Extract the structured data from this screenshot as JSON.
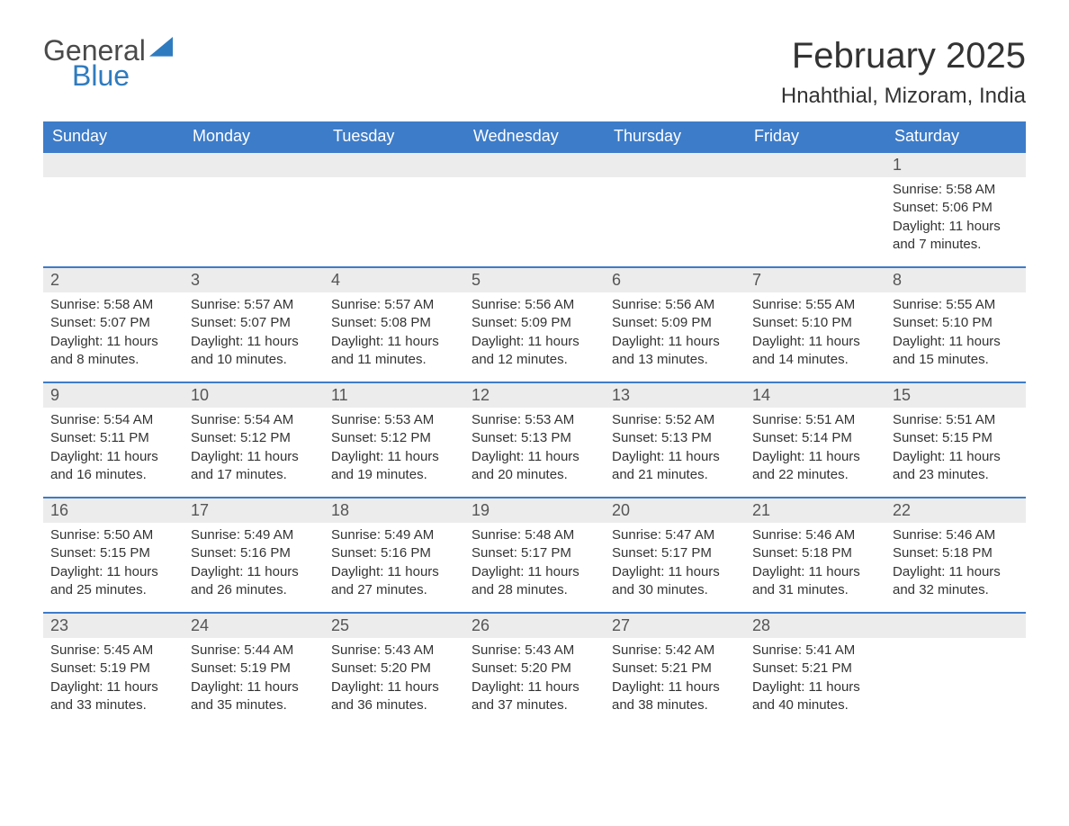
{
  "brand": {
    "word1": "General",
    "word2": "Blue",
    "accent": "#2f7bbf",
    "text_color": "#4a4a4a"
  },
  "header": {
    "title": "February 2025",
    "location": "Hnahthial, Mizoram, India"
  },
  "theme": {
    "header_bg": "#3d7cc9",
    "header_fg": "#ffffff",
    "daynum_bg": "#ececec",
    "rule_color": "#3d7cc9",
    "body_fg": "#333333",
    "page_bg": "#ffffff"
  },
  "weekdays": [
    "Sunday",
    "Monday",
    "Tuesday",
    "Wednesday",
    "Thursday",
    "Friday",
    "Saturday"
  ],
  "first_weekday_index": 6,
  "days": [
    {
      "n": 1,
      "sunrise": "5:58 AM",
      "sunset": "5:06 PM",
      "daylight": "11 hours and 7 minutes."
    },
    {
      "n": 2,
      "sunrise": "5:58 AM",
      "sunset": "5:07 PM",
      "daylight": "11 hours and 8 minutes."
    },
    {
      "n": 3,
      "sunrise": "5:57 AM",
      "sunset": "5:07 PM",
      "daylight": "11 hours and 10 minutes."
    },
    {
      "n": 4,
      "sunrise": "5:57 AM",
      "sunset": "5:08 PM",
      "daylight": "11 hours and 11 minutes."
    },
    {
      "n": 5,
      "sunrise": "5:56 AM",
      "sunset": "5:09 PM",
      "daylight": "11 hours and 12 minutes."
    },
    {
      "n": 6,
      "sunrise": "5:56 AM",
      "sunset": "5:09 PM",
      "daylight": "11 hours and 13 minutes."
    },
    {
      "n": 7,
      "sunrise": "5:55 AM",
      "sunset": "5:10 PM",
      "daylight": "11 hours and 14 minutes."
    },
    {
      "n": 8,
      "sunrise": "5:55 AM",
      "sunset": "5:10 PM",
      "daylight": "11 hours and 15 minutes."
    },
    {
      "n": 9,
      "sunrise": "5:54 AM",
      "sunset": "5:11 PM",
      "daylight": "11 hours and 16 minutes."
    },
    {
      "n": 10,
      "sunrise": "5:54 AM",
      "sunset": "5:12 PM",
      "daylight": "11 hours and 17 minutes."
    },
    {
      "n": 11,
      "sunrise": "5:53 AM",
      "sunset": "5:12 PM",
      "daylight": "11 hours and 19 minutes."
    },
    {
      "n": 12,
      "sunrise": "5:53 AM",
      "sunset": "5:13 PM",
      "daylight": "11 hours and 20 minutes."
    },
    {
      "n": 13,
      "sunrise": "5:52 AM",
      "sunset": "5:13 PM",
      "daylight": "11 hours and 21 minutes."
    },
    {
      "n": 14,
      "sunrise": "5:51 AM",
      "sunset": "5:14 PM",
      "daylight": "11 hours and 22 minutes."
    },
    {
      "n": 15,
      "sunrise": "5:51 AM",
      "sunset": "5:15 PM",
      "daylight": "11 hours and 23 minutes."
    },
    {
      "n": 16,
      "sunrise": "5:50 AM",
      "sunset": "5:15 PM",
      "daylight": "11 hours and 25 minutes."
    },
    {
      "n": 17,
      "sunrise": "5:49 AM",
      "sunset": "5:16 PM",
      "daylight": "11 hours and 26 minutes."
    },
    {
      "n": 18,
      "sunrise": "5:49 AM",
      "sunset": "5:16 PM",
      "daylight": "11 hours and 27 minutes."
    },
    {
      "n": 19,
      "sunrise": "5:48 AM",
      "sunset": "5:17 PM",
      "daylight": "11 hours and 28 minutes."
    },
    {
      "n": 20,
      "sunrise": "5:47 AM",
      "sunset": "5:17 PM",
      "daylight": "11 hours and 30 minutes."
    },
    {
      "n": 21,
      "sunrise": "5:46 AM",
      "sunset": "5:18 PM",
      "daylight": "11 hours and 31 minutes."
    },
    {
      "n": 22,
      "sunrise": "5:46 AM",
      "sunset": "5:18 PM",
      "daylight": "11 hours and 32 minutes."
    },
    {
      "n": 23,
      "sunrise": "5:45 AM",
      "sunset": "5:19 PM",
      "daylight": "11 hours and 33 minutes."
    },
    {
      "n": 24,
      "sunrise": "5:44 AM",
      "sunset": "5:19 PM",
      "daylight": "11 hours and 35 minutes."
    },
    {
      "n": 25,
      "sunrise": "5:43 AM",
      "sunset": "5:20 PM",
      "daylight": "11 hours and 36 minutes."
    },
    {
      "n": 26,
      "sunrise": "5:43 AM",
      "sunset": "5:20 PM",
      "daylight": "11 hours and 37 minutes."
    },
    {
      "n": 27,
      "sunrise": "5:42 AM",
      "sunset": "5:21 PM",
      "daylight": "11 hours and 38 minutes."
    },
    {
      "n": 28,
      "sunrise": "5:41 AM",
      "sunset": "5:21 PM",
      "daylight": "11 hours and 40 minutes."
    }
  ],
  "labels": {
    "sunrise": "Sunrise:",
    "sunset": "Sunset:",
    "daylight": "Daylight:"
  }
}
